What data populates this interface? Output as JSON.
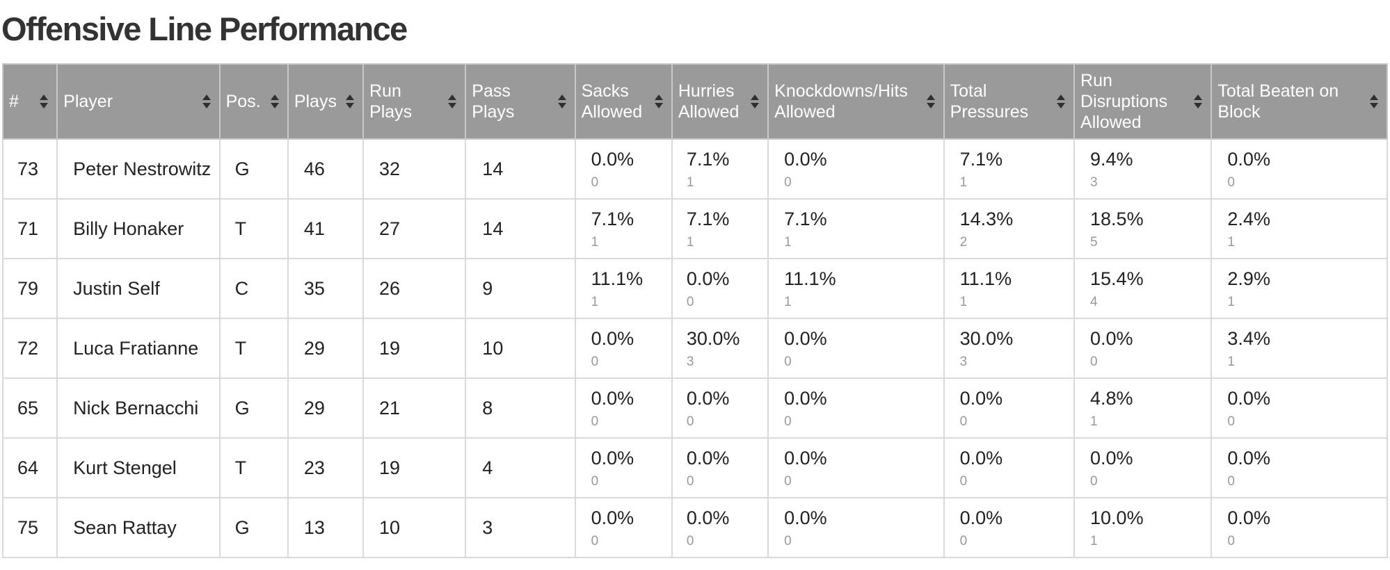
{
  "page_title": "Offensive Line Performance",
  "colors": {
    "header_bg": "#9a9a9a",
    "header_text": "#ffffff",
    "grid": "#d9d9d9",
    "count_text": "#999999"
  },
  "icons": {
    "sort": "sort-updown-icon"
  },
  "columns": [
    {
      "label": "#"
    },
    {
      "label": "Player"
    },
    {
      "label": "Pos."
    },
    {
      "label": "Plays"
    },
    {
      "label": "Run Plays"
    },
    {
      "label": "Pass Plays"
    },
    {
      "label": "Sacks Allowed"
    },
    {
      "label": "Hurries Allowed"
    },
    {
      "label": "Knockdowns/Hits Allowed"
    },
    {
      "label": "Total Pressures"
    },
    {
      "label": "Run Disruptions Allowed"
    },
    {
      "label": "Total Beaten on Block"
    }
  ],
  "rows": [
    {
      "num": "73",
      "player": "Peter Nestrowitz",
      "pos": "G",
      "plays": "46",
      "run": "32",
      "pass": "14",
      "sacks": {
        "pct": "0.0%",
        "count": "0"
      },
      "hurries": {
        "pct": "7.1%",
        "count": "1"
      },
      "knockdowns": {
        "pct": "0.0%",
        "count": "0"
      },
      "pressures": {
        "pct": "7.1%",
        "count": "1"
      },
      "disruptions": {
        "pct": "9.4%",
        "count": "3"
      },
      "beaten": {
        "pct": "0.0%",
        "count": "0"
      }
    },
    {
      "num": "71",
      "player": "Billy Honaker",
      "pos": "T",
      "plays": "41",
      "run": "27",
      "pass": "14",
      "sacks": {
        "pct": "7.1%",
        "count": "1"
      },
      "hurries": {
        "pct": "7.1%",
        "count": "1"
      },
      "knockdowns": {
        "pct": "7.1%",
        "count": "1"
      },
      "pressures": {
        "pct": "14.3%",
        "count": "2"
      },
      "disruptions": {
        "pct": "18.5%",
        "count": "5"
      },
      "beaten": {
        "pct": "2.4%",
        "count": "1"
      }
    },
    {
      "num": "79",
      "player": "Justin Self",
      "pos": "C",
      "plays": "35",
      "run": "26",
      "pass": "9",
      "sacks": {
        "pct": "11.1%",
        "count": "1"
      },
      "hurries": {
        "pct": "0.0%",
        "count": "0"
      },
      "knockdowns": {
        "pct": "11.1%",
        "count": "1"
      },
      "pressures": {
        "pct": "11.1%",
        "count": "1"
      },
      "disruptions": {
        "pct": "15.4%",
        "count": "4"
      },
      "beaten": {
        "pct": "2.9%",
        "count": "1"
      }
    },
    {
      "num": "72",
      "player": "Luca Fratianne",
      "pos": "T",
      "plays": "29",
      "run": "19",
      "pass": "10",
      "sacks": {
        "pct": "0.0%",
        "count": "0"
      },
      "hurries": {
        "pct": "30.0%",
        "count": "3"
      },
      "knockdowns": {
        "pct": "0.0%",
        "count": "0"
      },
      "pressures": {
        "pct": "30.0%",
        "count": "3"
      },
      "disruptions": {
        "pct": "0.0%",
        "count": "0"
      },
      "beaten": {
        "pct": "3.4%",
        "count": "1"
      }
    },
    {
      "num": "65",
      "player": "Nick Bernacchi",
      "pos": "G",
      "plays": "29",
      "run": "21",
      "pass": "8",
      "sacks": {
        "pct": "0.0%",
        "count": "0"
      },
      "hurries": {
        "pct": "0.0%",
        "count": "0"
      },
      "knockdowns": {
        "pct": "0.0%",
        "count": "0"
      },
      "pressures": {
        "pct": "0.0%",
        "count": "0"
      },
      "disruptions": {
        "pct": "4.8%",
        "count": "1"
      },
      "beaten": {
        "pct": "0.0%",
        "count": "0"
      }
    },
    {
      "num": "64",
      "player": "Kurt Stengel",
      "pos": "T",
      "plays": "23",
      "run": "19",
      "pass": "4",
      "sacks": {
        "pct": "0.0%",
        "count": "0"
      },
      "hurries": {
        "pct": "0.0%",
        "count": "0"
      },
      "knockdowns": {
        "pct": "0.0%",
        "count": "0"
      },
      "pressures": {
        "pct": "0.0%",
        "count": "0"
      },
      "disruptions": {
        "pct": "0.0%",
        "count": "0"
      },
      "beaten": {
        "pct": "0.0%",
        "count": "0"
      }
    },
    {
      "num": "75",
      "player": "Sean Rattay",
      "pos": "G",
      "plays": "13",
      "run": "10",
      "pass": "3",
      "sacks": {
        "pct": "0.0%",
        "count": "0"
      },
      "hurries": {
        "pct": "0.0%",
        "count": "0"
      },
      "knockdowns": {
        "pct": "0.0%",
        "count": "0"
      },
      "pressures": {
        "pct": "0.0%",
        "count": "0"
      },
      "disruptions": {
        "pct": "10.0%",
        "count": "1"
      },
      "beaten": {
        "pct": "0.0%",
        "count": "0"
      }
    }
  ]
}
